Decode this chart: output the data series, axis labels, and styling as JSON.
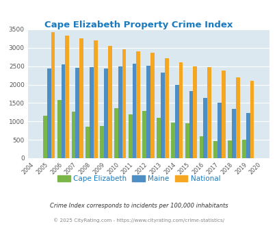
{
  "title": "Cape Elizabeth Property Crime Index",
  "years": [
    2004,
    2005,
    2006,
    2007,
    2008,
    2009,
    2010,
    2011,
    2012,
    2013,
    2014,
    2015,
    2016,
    2017,
    2018,
    2019,
    2020
  ],
  "cape_elizabeth": [
    null,
    1150,
    1580,
    1270,
    850,
    870,
    1350,
    1200,
    1290,
    1090,
    960,
    950,
    600,
    460,
    475,
    510,
    null
  ],
  "maine": [
    null,
    2430,
    2540,
    2460,
    2470,
    2440,
    2500,
    2560,
    2510,
    2320,
    2000,
    1830,
    1640,
    1510,
    1345,
    1230,
    null
  ],
  "national": [
    null,
    3420,
    3330,
    3255,
    3200,
    3050,
    2960,
    2900,
    2860,
    2720,
    2600,
    2500,
    2470,
    2380,
    2200,
    2110,
    null
  ],
  "cape_color": "#7ab648",
  "maine_color": "#4d8fc4",
  "national_color": "#f5a623",
  "bg_color": "#dce8f0",
  "title_color": "#1a7abf",
  "ylim": [
    0,
    3500
  ],
  "yticks": [
    0,
    500,
    1000,
    1500,
    2000,
    2500,
    3000,
    3500
  ],
  "legend_labels": [
    "Cape Elizabeth",
    "Maine",
    "National"
  ],
  "footnote1": "Crime Index corresponds to incidents per 100,000 inhabitants",
  "footnote2": "© 2025 CityRating.com - https://www.cityrating.com/crime-statistics/"
}
